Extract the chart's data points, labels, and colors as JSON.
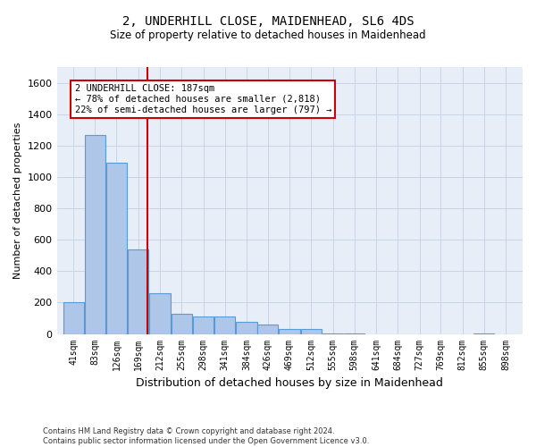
{
  "title_line1": "2, UNDERHILL CLOSE, MAIDENHEAD, SL6 4DS",
  "title_line2": "Size of property relative to detached houses in Maidenhead",
  "xlabel": "Distribution of detached houses by size in Maidenhead",
  "ylabel": "Number of detached properties",
  "categories": [
    "41sqm",
    "83sqm",
    "126sqm",
    "169sqm",
    "212sqm",
    "255sqm",
    "298sqm",
    "341sqm",
    "384sqm",
    "426sqm",
    "469sqm",
    "512sqm",
    "555sqm",
    "598sqm",
    "641sqm",
    "684sqm",
    "727sqm",
    "769sqm",
    "812sqm",
    "855sqm",
    "898sqm"
  ],
  "values": [
    200,
    1270,
    1090,
    540,
    260,
    130,
    110,
    110,
    80,
    60,
    30,
    30,
    5,
    5,
    0,
    0,
    0,
    0,
    0,
    5,
    0
  ],
  "bar_color": "#aec6e8",
  "bar_edge_color": "#5b9bd5",
  "grid_color": "#c8d4e8",
  "bg_color": "#e8eef8",
  "fig_bg_color": "#ffffff",
  "annotation_text": "2 UNDERHILL CLOSE: 187sqm\n← 78% of detached houses are smaller (2,818)\n22% of semi-detached houses are larger (797) →",
  "annotation_box_color": "#ffffff",
  "annotation_box_edge": "#cc0000",
  "vline_x": 187,
  "vline_color": "#cc0000",
  "ylim": [
    0,
    1700
  ],
  "yticks": [
    0,
    200,
    400,
    600,
    800,
    1000,
    1200,
    1400,
    1600
  ],
  "footer": "Contains HM Land Registry data © Crown copyright and database right 2024.\nContains public sector information licensed under the Open Government Licence v3.0.",
  "bin_width": 42
}
